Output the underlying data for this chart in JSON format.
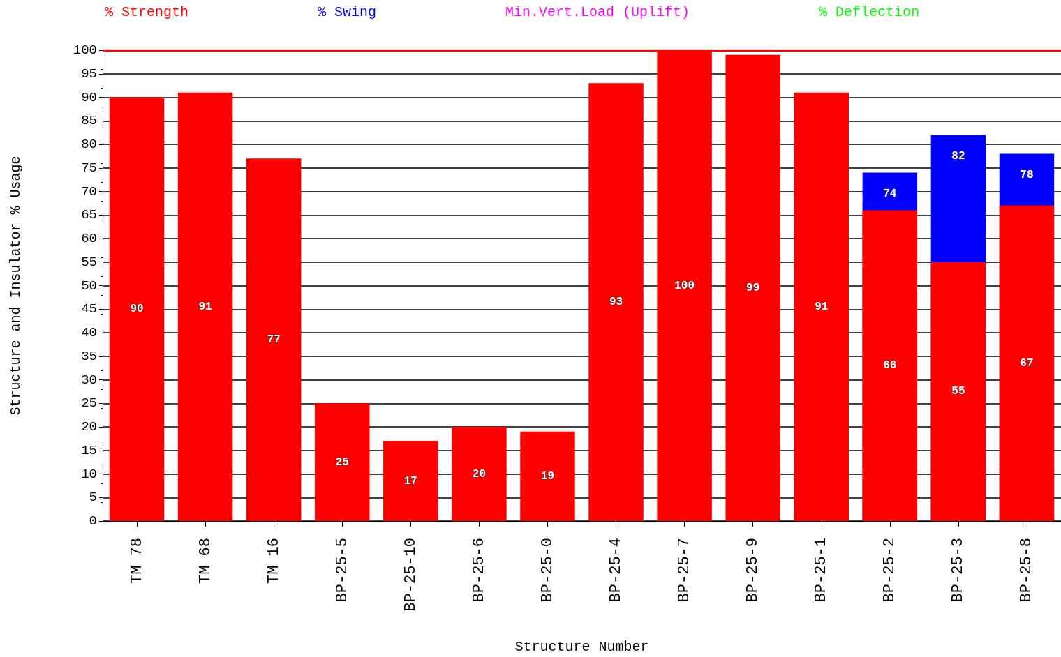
{
  "chart_data": {
    "type": "bar",
    "xlabel": "Structure Number",
    "ylabel": "Structure and Insulator % Usage",
    "categories": [
      "TM 78",
      "TM 68",
      "TM 16",
      "BP-25-5",
      "BP-25-10",
      "BP-25-6",
      "BP-25-0",
      "BP-25-4",
      "BP-25-7",
      "BP-25-9",
      "BP-25-1",
      "BP-25-2",
      "BP-25-3",
      "BP-25-8"
    ],
    "series": [
      {
        "name": "% Strength",
        "color": "#ff0000",
        "values": [
          90,
          91,
          77,
          25,
          17,
          20,
          19,
          93,
          100,
          99,
          91,
          66,
          55,
          67
        ]
      },
      {
        "name": "% Swing",
        "color": "#0000ff",
        "values": [
          null,
          null,
          null,
          null,
          null,
          null,
          null,
          null,
          null,
          null,
          null,
          74,
          82,
          78
        ]
      },
      {
        "name": "Min.Vert.Load (Uplift)",
        "color": "#ff00ff",
        "values": [
          null,
          null,
          null,
          null,
          null,
          null,
          null,
          null,
          null,
          null,
          null,
          null,
          null,
          null
        ]
      },
      {
        "name": "% Deflection",
        "color": "#00ff00",
        "values": [
          null,
          null,
          null,
          null,
          null,
          null,
          null,
          null,
          null,
          null,
          null,
          null,
          null,
          null
        ]
      }
    ],
    "ylim": [
      0,
      100
    ],
    "yticks": [
      0,
      5,
      10,
      15,
      20,
      25,
      30,
      35,
      40,
      45,
      50,
      55,
      60,
      65,
      70,
      75,
      80,
      85,
      90,
      95,
      100
    ],
    "ref_lines": [
      {
        "axis": "y",
        "value": 100,
        "color": "#ff0000"
      }
    ],
    "data_labels": true,
    "grid": "y",
    "legend": "top"
  }
}
